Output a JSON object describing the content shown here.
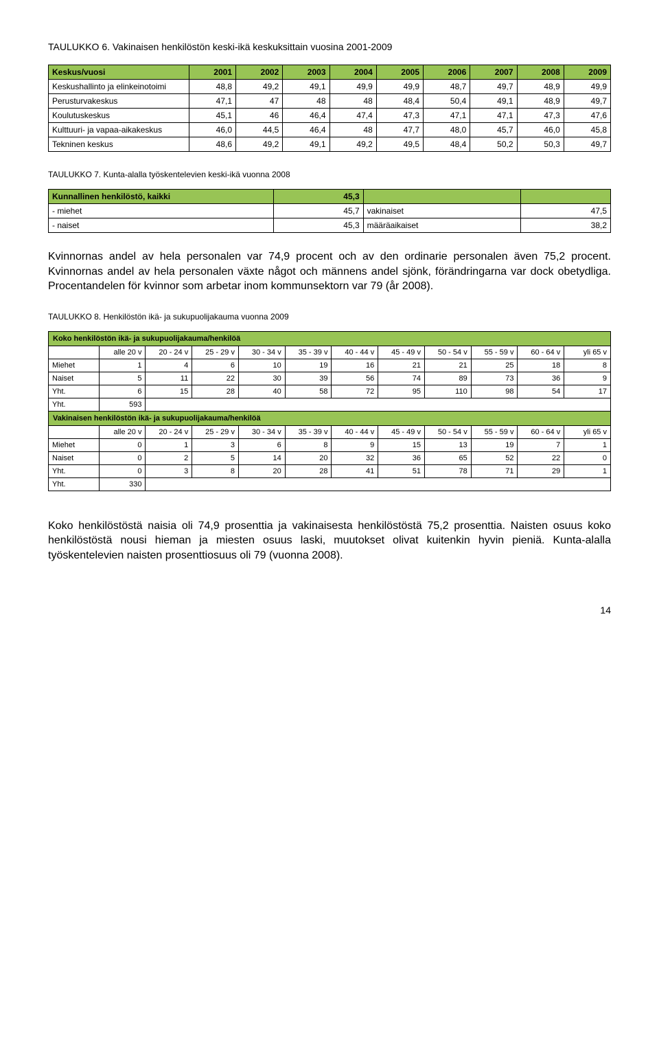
{
  "t6": {
    "title": "TAULUKKO 6. Vakinaisen henkilöstön keski-ikä keskuksittain vuosina 2001-2009",
    "headers": [
      "Keskus/vuosi",
      "2001",
      "2002",
      "2003",
      "2004",
      "2005",
      "2006",
      "2007",
      "2008",
      "2009"
    ],
    "rows": [
      [
        "Keskushallinto ja elinkeinotoimi",
        "48,8",
        "49,2",
        "49,1",
        "49,9",
        "49,9",
        "48,7",
        "49,7",
        "48,9",
        "49,9"
      ],
      [
        "Perusturvakeskus",
        "47,1",
        "47",
        "48",
        "48",
        "48,4",
        "50,4",
        "49,1",
        "48,9",
        "49,7"
      ],
      [
        "Koulutuskeskus",
        "45,1",
        "46",
        "46,4",
        "47,4",
        "47,3",
        "47,1",
        "47,1",
        "47,3",
        "47,6"
      ],
      [
        "Kulttuuri- ja vapaa-aikakeskus",
        "46,0",
        "44,5",
        "46,4",
        "48",
        "47,7",
        "48,0",
        "45,7",
        "46,0",
        "45,8"
      ],
      [
        "Tekninen keskus",
        "48,6",
        "49,2",
        "49,1",
        "49,2",
        "49,5",
        "48,4",
        "50,2",
        "50,3",
        "49,7"
      ]
    ],
    "hdr_bg": "#98c455"
  },
  "t7": {
    "title": "TAULUKKO 7. Kunta-alalla työskentelevien keski-ikä vuonna 2008",
    "rows": [
      [
        "Kunnallinen henkilöstö, kaikki",
        "45,3",
        "",
        ""
      ],
      [
        " - miehet",
        "45,7",
        "vakinaiset",
        "47,5"
      ],
      [
        " - naiset",
        "45,3",
        "määräaikaiset",
        "38,2"
      ]
    ]
  },
  "para1": "Kvinnornas andel av hela personalen var 74,9 procent och av den ordinarie personalen även 75,2 procent. Kvinnornas andel av hela personalen växte något och männens andel sjönk, förändringarna var dock obetydliga. Procentandelen för kvinnor som arbetar inom kommunsektorn var 79 (år 2008).",
  "t8": {
    "title": "TAULUKKO 8. Henkilöstön ikä- ja sukupuolijakauma vuonna 2009",
    "section1_title": "Koko henkilöstön ikä- ja sukupuolijakauma/henkilöä",
    "age_headers": [
      "",
      "alle 20 v",
      "20 - 24 v",
      "25 - 29 v",
      "30 - 34 v",
      "35 - 39 v",
      "40 - 44 v",
      "45 - 49 v",
      "50 - 54 v",
      "55 - 59 v",
      "60 - 64 v",
      "yli 65 v"
    ],
    "s1_rows": [
      [
        "Miehet",
        "1",
        "4",
        "6",
        "10",
        "19",
        "16",
        "21",
        "21",
        "25",
        "18",
        "8"
      ],
      [
        "Naiset",
        "5",
        "11",
        "22",
        "30",
        "39",
        "56",
        "74",
        "89",
        "73",
        "36",
        "9"
      ],
      [
        "Yht.",
        "6",
        "15",
        "28",
        "40",
        "58",
        "72",
        "95",
        "110",
        "98",
        "54",
        "17"
      ]
    ],
    "s1_total": [
      "Yht.",
      "593"
    ],
    "section2_title": "Vakinaisen henkilöstön ikä- ja sukupuolijakauma/henkilöä",
    "s2_rows": [
      [
        "Miehet",
        "0",
        "1",
        "3",
        "6",
        "8",
        "9",
        "15",
        "13",
        "19",
        "7",
        "1"
      ],
      [
        "Naiset",
        "0",
        "2",
        "5",
        "14",
        "20",
        "32",
        "36",
        "65",
        "52",
        "22",
        "0"
      ],
      [
        "Yht.",
        "0",
        "3",
        "8",
        "20",
        "28",
        "41",
        "51",
        "78",
        "71",
        "29",
        "1"
      ]
    ],
    "s2_total": [
      "Yht.",
      "330"
    ]
  },
  "para2": "Koko henkilöstöstä naisia oli 74,9 prosenttia ja vakinaisesta henkilöstöstä 75,2 prosenttia. Naisten osuus koko henkilöstöstä nousi hieman ja miesten osuus laski, muutokset olivat kuitenkin hyvin pieniä. Kunta-alalla työskentelevien naisten prosenttiosuus oli 79 (vuonna 2008).",
  "pagenum": "14"
}
